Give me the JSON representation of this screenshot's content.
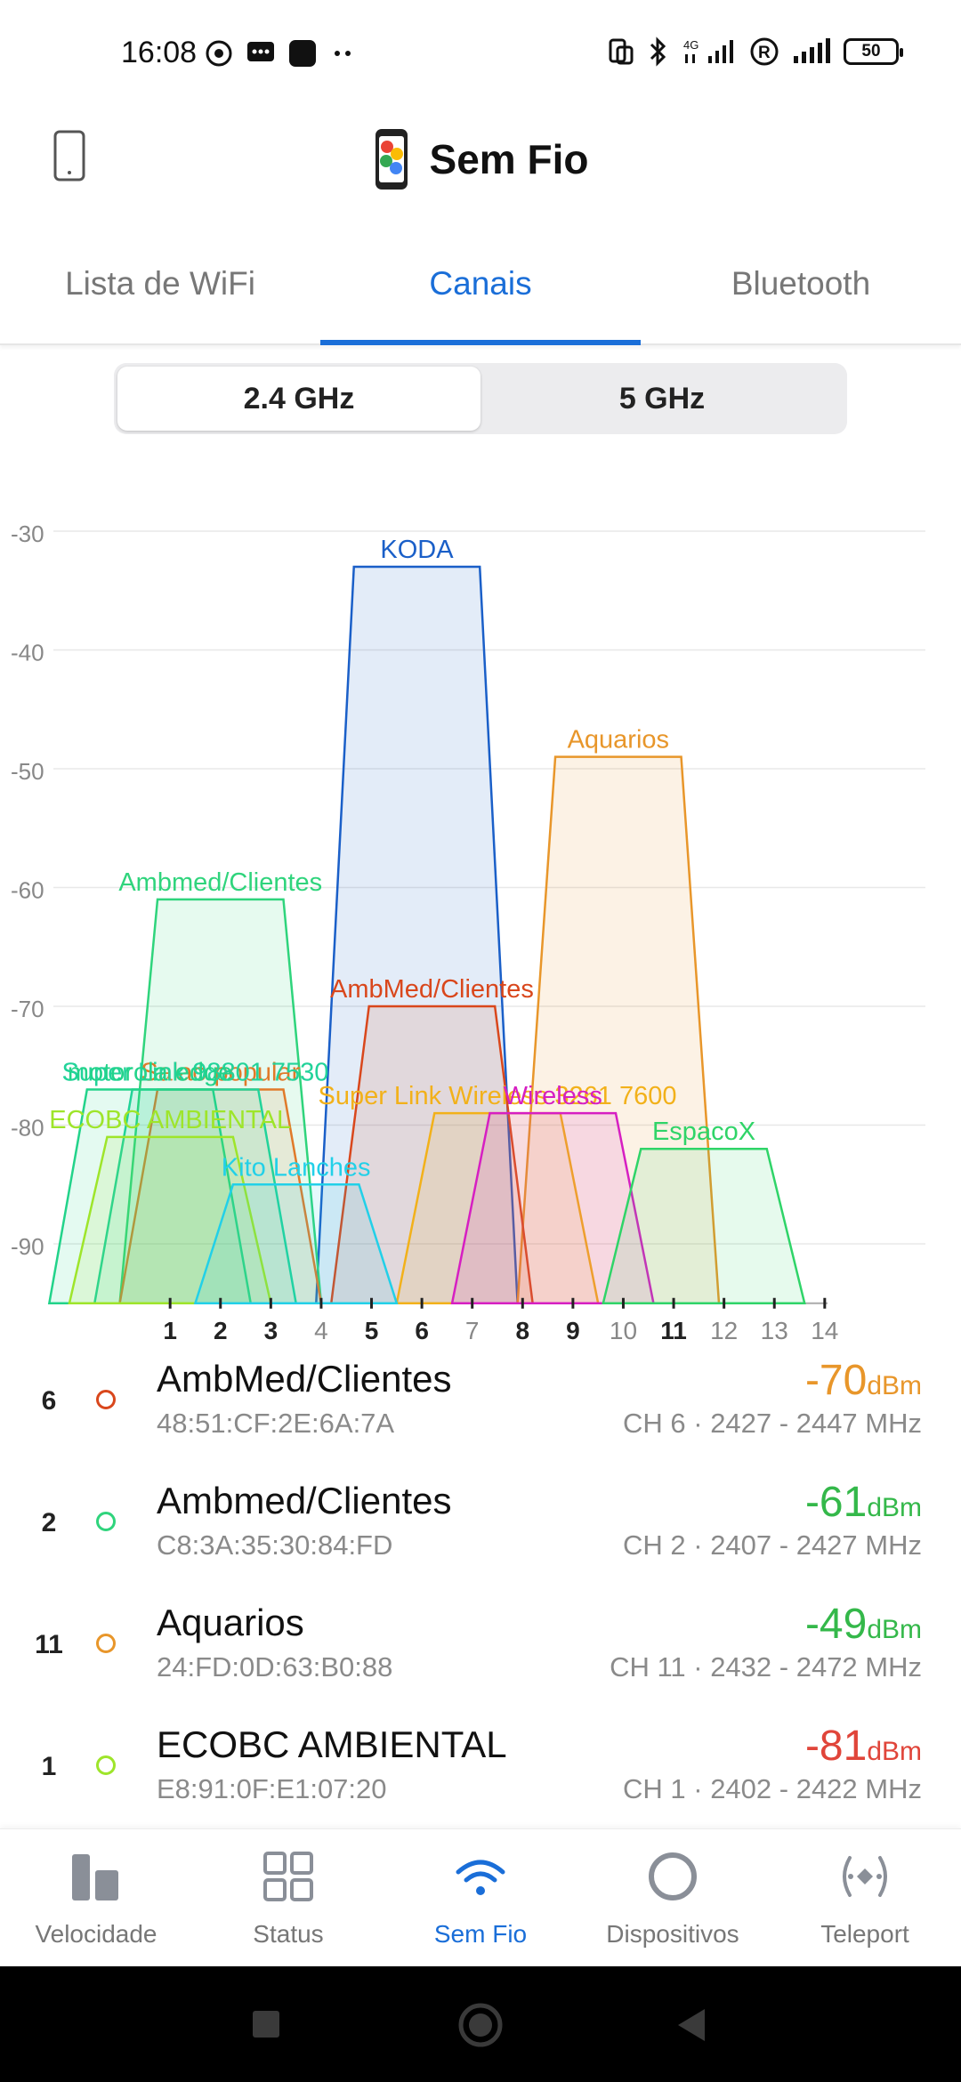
{
  "status_bar": {
    "time": "16:08",
    "battery": "50",
    "network": "4G"
  },
  "header": {
    "title": "Sem Fio"
  },
  "tabs": [
    {
      "label": "Lista de WiFi",
      "active": false
    },
    {
      "label": "Canais",
      "active": true
    },
    {
      "label": "Bluetooth",
      "active": false
    }
  ],
  "band_selector": [
    {
      "label": "2.4 GHz",
      "active": true
    },
    {
      "label": "5 GHz",
      "active": false
    }
  ],
  "chart_data": {
    "type": "area",
    "title": "",
    "xlabel": "",
    "ylabel": "",
    "x_ticks": [
      "1",
      "2",
      "3",
      "4",
      "5",
      "6",
      "7",
      "8",
      "9",
      "10",
      "11",
      "12",
      "13",
      "14"
    ],
    "y_ticks": [
      "-30",
      "-40",
      "-50",
      "-60",
      "-70",
      "-80",
      "-90"
    ],
    "xlim": [
      -1,
      16
    ],
    "ylim": [
      -95,
      -30
    ],
    "grid": true,
    "series": [
      {
        "name": "KODA",
        "center": 5.9,
        "level": -33,
        "color": "#1a5fc8"
      },
      {
        "name": "Aquarios",
        "center": 9.9,
        "level": -49,
        "color": "#e8962a"
      },
      {
        "name": "Ambmed/Clientes",
        "center": 2,
        "level": -61,
        "color": "#2fd47c"
      },
      {
        "name": "AmbMed/Clientes",
        "center": 6.2,
        "level": -70,
        "color": "#d9471c"
      },
      {
        "name": "Salao popular",
        "center": 2,
        "level": -77,
        "color": "#e07a2a"
      },
      {
        "name": "Super Link 98801 7530",
        "center": 1.5,
        "level": -77,
        "color": "#22d39a"
      },
      {
        "name": "motorola edge",
        "center": 0.6,
        "level": -77,
        "color": "#22d38a"
      },
      {
        "name": "Super Link Wireless 3261 7600",
        "center": 7.5,
        "level": -79,
        "color": "#f2b11a"
      },
      {
        "name": "Wireless",
        "center": 8.6,
        "level": -79,
        "color": "#d61fc2"
      },
      {
        "name": "EspacoX",
        "center": 11.6,
        "level": -82,
        "color": "#2fd468"
      },
      {
        "name": "ECOBC AMBIENTAL",
        "center": 1,
        "level": -81,
        "color": "#9ee52a"
      },
      {
        "name": "Kito Lanches",
        "center": 3.5,
        "level": -85,
        "color": "#22d0e8"
      }
    ]
  },
  "networks": [
    {
      "channel": "6",
      "name": "AmbMed/Clientes",
      "mac": "48:51:CF:2E:6A:7A",
      "signal": "-70",
      "unit": "dBm",
      "info": "CH 6 · 2427 - 2447 MHz",
      "dot_color": "#d9471c",
      "signal_color": "#e8962a"
    },
    {
      "channel": "2",
      "name": "Ambmed/Clientes",
      "mac": "C8:3A:35:30:84:FD",
      "signal": "-61",
      "unit": "dBm",
      "info": "CH 2 · 2407 - 2427 MHz",
      "dot_color": "#2fd47c",
      "signal_color": "#34b84a"
    },
    {
      "channel": "11",
      "name": "Aquarios",
      "mac": "24:FD:0D:63:B0:88",
      "signal": "-49",
      "unit": "dBm",
      "info": "CH 11 · 2432 - 2472 MHz",
      "dot_color": "#e8962a",
      "signal_color": "#34b84a"
    },
    {
      "channel": "1",
      "name": "ECOBC AMBIENTAL",
      "mac": "E8:91:0F:E1:07:20",
      "signal": "-81",
      "unit": "dBm",
      "info": "CH 1 · 2402 - 2422 MHz",
      "dot_color": "#9ee52a",
      "signal_color": "#e0453a"
    }
  ],
  "bottom_nav": [
    {
      "label": "Velocidade",
      "icon": "speed-bars-icon",
      "active": false
    },
    {
      "label": "Status",
      "icon": "grid-icon",
      "active": false
    },
    {
      "label": "Sem Fio",
      "icon": "wifi-icon",
      "active": true
    },
    {
      "label": "Dispositivos",
      "icon": "ring-icon",
      "active": false
    },
    {
      "label": "Teleport",
      "icon": "teleport-icon",
      "active": false
    }
  ],
  "colors": {
    "accent": "#1a6ed8"
  }
}
